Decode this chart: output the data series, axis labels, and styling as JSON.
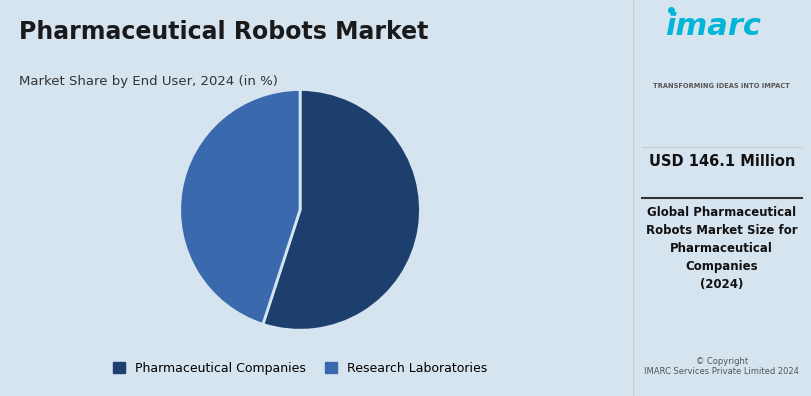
{
  "title": "Pharmaceutical Robots Market",
  "subtitle": "Market Share by End User, 2024 (in %)",
  "slices": [
    {
      "label": "Pharmaceutical Companies",
      "value": 55,
      "color": "#1c3f6e"
    },
    {
      "label": "Research Laboratories",
      "value": 45,
      "color": "#3a6aad"
    }
  ],
  "bg_color": "#d6e4f0",
  "right_panel_bg": "#ffffff",
  "right_panel_text_usd": "USD 146.1 Million",
  "right_panel_desc": "Global Pharmaceutical\nRobots Market Size for\nPharmaceutical\nCompanies\n(2024)",
  "copyright_text": "© Copyright\nIMARC Services Private Limited 2024",
  "start_angle": 90
}
